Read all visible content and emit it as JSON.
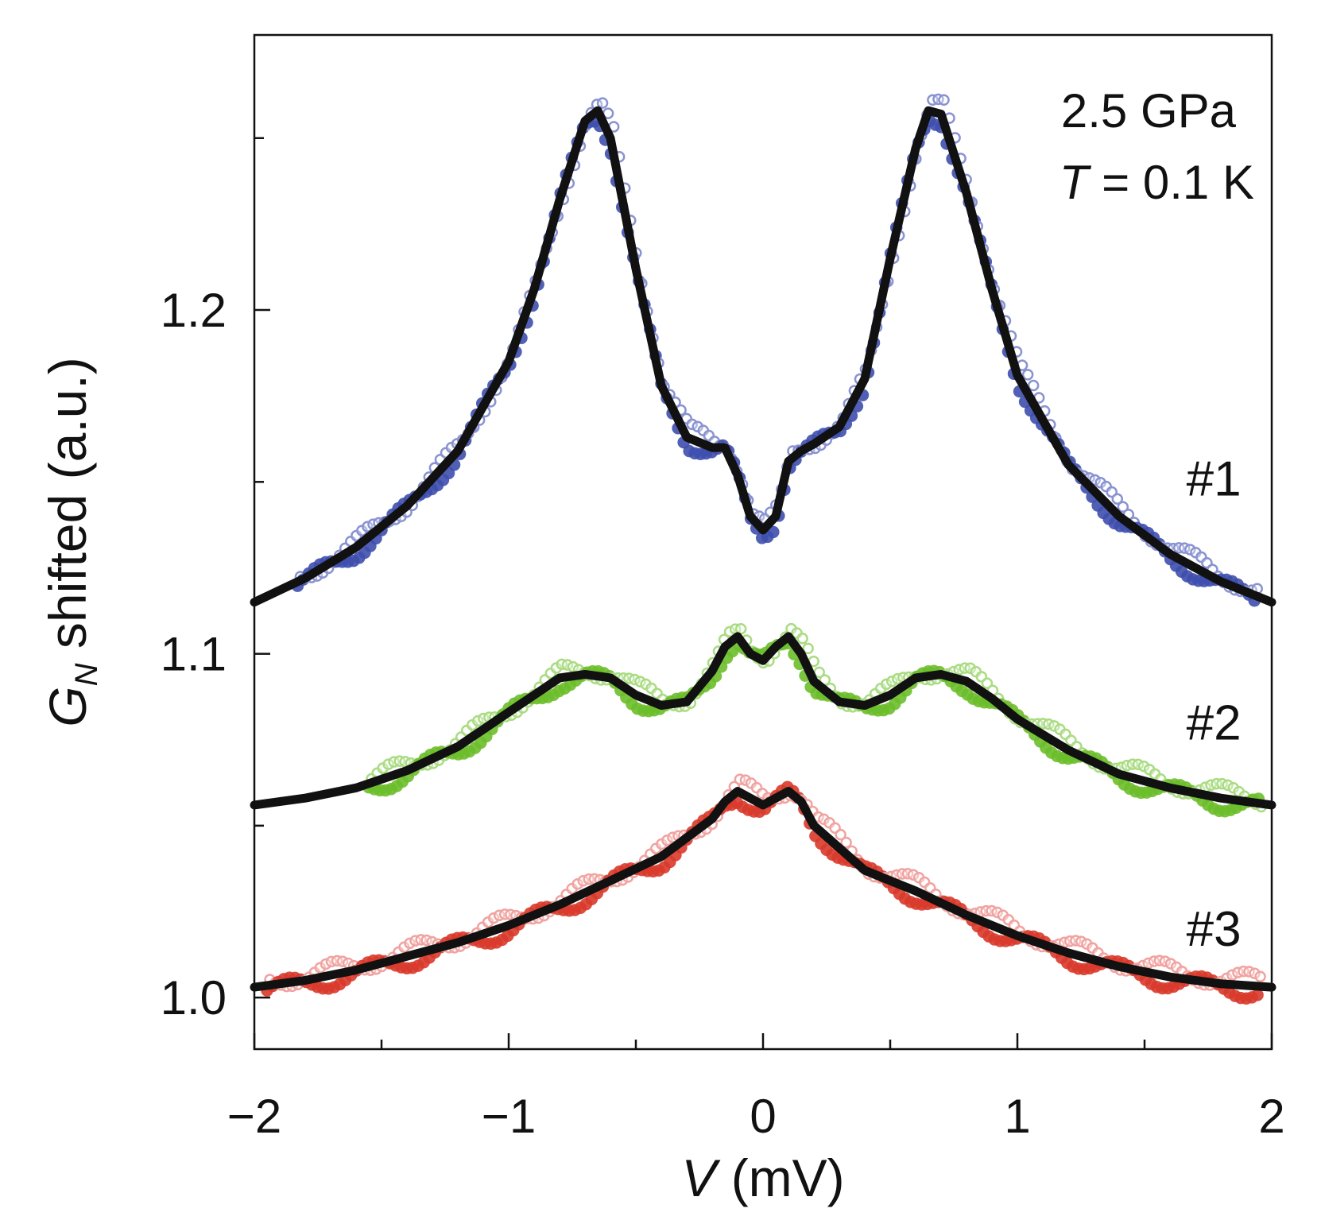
{
  "chart_data": {
    "type": "scatter",
    "title": "",
    "xlabel": {
      "var": "V",
      "unit": " (mV)"
    },
    "ylabel": {
      "prefix": "G",
      "sub": "N",
      "suffix": " shifted (a.u.)"
    },
    "xlim": [
      -2,
      2
    ],
    "ylim": [
      0.985,
      1.28
    ],
    "xticks": [
      {
        "value": -2,
        "label": "−2"
      },
      {
        "value": -1,
        "label": "−1"
      },
      {
        "value": 0,
        "label": "0"
      },
      {
        "value": 1,
        "label": "1"
      },
      {
        "value": 2,
        "label": "2"
      }
    ],
    "xminor": [
      -1.5,
      -0.5,
      0.5,
      1.5
    ],
    "yticks": [
      {
        "value": 1.0,
        "label": "1.0"
      },
      {
        "value": 1.1,
        "label": "1.1"
      },
      {
        "value": 1.2,
        "label": "1.2"
      }
    ],
    "yminor": [
      1.05,
      1.15,
      1.25
    ],
    "annotations": {
      "pressure": "2.5 GPa",
      "temp_var": "T",
      "temp_value": " = 0.1 K"
    },
    "series": [
      {
        "name": "#1",
        "marker_color": "#3f4fae",
        "marker_light": "#8a93d2",
        "fit_color": "#111111",
        "x": [
          -2.0,
          -1.8,
          -1.6,
          -1.4,
          -1.2,
          -1.0,
          -0.9,
          -0.8,
          -0.7,
          -0.65,
          -0.6,
          -0.5,
          -0.4,
          -0.3,
          -0.2,
          -0.15,
          -0.1,
          -0.05,
          0.0,
          0.05,
          0.1,
          0.15,
          0.2,
          0.3,
          0.4,
          0.5,
          0.6,
          0.65,
          0.7,
          0.8,
          0.9,
          1.0,
          1.2,
          1.4,
          1.6,
          1.8,
          2.0
        ],
        "fit": [
          1.115,
          1.122,
          1.131,
          1.143,
          1.159,
          1.185,
          1.206,
          1.232,
          1.255,
          1.258,
          1.25,
          1.212,
          1.178,
          1.163,
          1.16,
          1.16,
          1.152,
          1.14,
          1.136,
          1.14,
          1.156,
          1.159,
          1.161,
          1.166,
          1.18,
          1.215,
          1.247,
          1.258,
          1.257,
          1.234,
          1.206,
          1.181,
          1.155,
          1.14,
          1.129,
          1.121,
          1.115
        ],
        "data_xrange": [
          -1.83,
          1.95
        ]
      },
      {
        "name": "#2",
        "marker_color": "#6cbe2b",
        "marker_light": "#a9dc82",
        "fit_color": "#111111",
        "x": [
          -2.0,
          -1.8,
          -1.6,
          -1.4,
          -1.2,
          -1.0,
          -0.9,
          -0.8,
          -0.7,
          -0.6,
          -0.5,
          -0.4,
          -0.3,
          -0.2,
          -0.15,
          -0.1,
          -0.05,
          0.0,
          0.05,
          0.1,
          0.15,
          0.2,
          0.3,
          0.4,
          0.5,
          0.6,
          0.7,
          0.8,
          0.9,
          1.0,
          1.2,
          1.4,
          1.6,
          1.8,
          2.0
        ],
        "fit": [
          1.056,
          1.058,
          1.061,
          1.066,
          1.073,
          1.083,
          1.088,
          1.093,
          1.094,
          1.093,
          1.088,
          1.085,
          1.086,
          1.095,
          1.102,
          1.105,
          1.1,
          1.098,
          1.102,
          1.105,
          1.1,
          1.092,
          1.086,
          1.085,
          1.088,
          1.093,
          1.094,
          1.092,
          1.087,
          1.081,
          1.072,
          1.065,
          1.061,
          1.058,
          1.056
        ],
        "data_xrange": [
          -1.55,
          1.95
        ]
      },
      {
        "name": "#3",
        "marker_color": "#d93a2c",
        "marker_light": "#f0a3a0",
        "fit_color": "#111111",
        "x": [
          -2.0,
          -1.8,
          -1.6,
          -1.4,
          -1.2,
          -1.0,
          -0.8,
          -0.6,
          -0.4,
          -0.2,
          -0.15,
          -0.1,
          -0.05,
          0.0,
          0.05,
          0.1,
          0.15,
          0.2,
          0.4,
          0.6,
          0.8,
          1.0,
          1.2,
          1.4,
          1.6,
          1.8,
          2.0
        ],
        "fit": [
          1.003,
          1.005,
          1.008,
          1.012,
          1.016,
          1.021,
          1.027,
          1.034,
          1.041,
          1.052,
          1.057,
          1.06,
          1.058,
          1.056,
          1.058,
          1.06,
          1.057,
          1.05,
          1.037,
          1.031,
          1.024,
          1.018,
          1.013,
          1.009,
          1.006,
          1.004,
          1.003
        ],
        "data_xrange": [
          -1.95,
          1.95
        ]
      }
    ]
  }
}
